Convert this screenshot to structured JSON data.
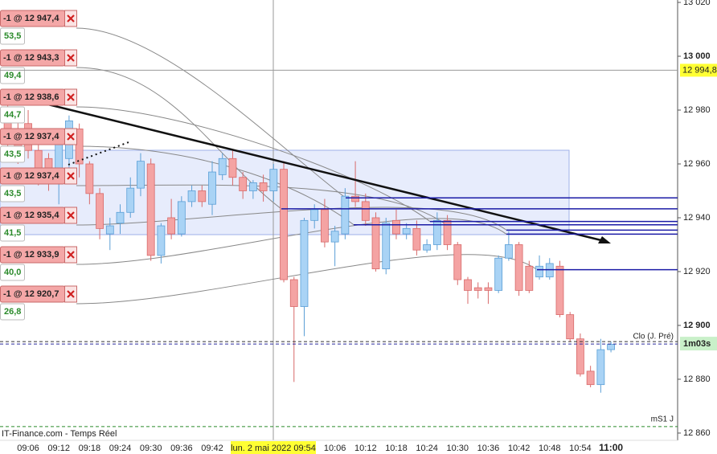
{
  "chart_data": {
    "type": "candlestick",
    "source": "IT-Finance.com - Temps Réel",
    "categories": [
      null,
      null,
      "09:06",
      null,
      null,
      "09:12",
      null,
      null,
      "09:18",
      null,
      null,
      "09:24",
      null,
      null,
      "09:30",
      null,
      null,
      "09:36",
      null,
      null,
      "09:42",
      null,
      null,
      null,
      null,
      null,
      null,
      null,
      null,
      null,
      null,
      null,
      "10:06",
      null,
      null,
      "10:12",
      null,
      null,
      "10:18",
      null,
      null,
      "10:24",
      null,
      null,
      "10:30",
      null,
      null,
      "10:36",
      null,
      null,
      "10:42",
      null,
      null,
      "10:48",
      null,
      null,
      "10:54",
      null,
      null,
      "11:00"
    ],
    "open": [
      12978,
      12972,
      12975,
      12965,
      12962,
      12955,
      12962,
      12973,
      12960,
      12949,
      12934,
      12938,
      12942,
      12951,
      12960,
      12926,
      12940,
      12934,
      12946,
      12950,
      12945,
      12956,
      12962,
      12955,
      12950,
      12953,
      12950,
      12958,
      12917,
      12907,
      12939,
      12943,
      12931,
      12934,
      12948,
      12946,
      12940,
      12921,
      12939,
      12934,
      12936,
      12928,
      12930,
      12939,
      12930,
      12917,
      12914,
      12914,
      12913,
      12925,
      12930,
      12922,
      12918,
      12918,
      12922,
      12904,
      12895,
      12883,
      12878,
      12891
    ],
    "high": [
      12982,
      12976,
      12980,
      12968,
      12964,
      12970,
      12978,
      12975,
      12961,
      12951,
      12940,
      12945,
      12955,
      12964,
      12962,
      12938,
      12947,
      12948,
      12952,
      12952,
      12961,
      12964,
      12965,
      12957,
      12954,
      12956,
      12960,
      12961,
      12918,
      12940,
      12945,
      12947,
      12937,
      12951,
      12961,
      12949,
      12942,
      12940,
      12943,
      12938,
      12939,
      12932,
      12942,
      12941,
      12931,
      12918,
      12916,
      12916,
      12926,
      12935,
      12931,
      12924,
      12926,
      12925,
      12924,
      12905,
      12897,
      12885,
      12895,
      12894
    ],
    "low": [
      12966,
      12960,
      12962,
      12952,
      12950,
      12945,
      12955,
      12955,
      12945,
      12932,
      12928,
      12934,
      12940,
      12948,
      12924,
      12923,
      12932,
      12933,
      12944,
      12944,
      12941,
      12954,
      12952,
      12947,
      12947,
      12946,
      12946,
      12916,
      12879,
      12896,
      12936,
      12929,
      12922,
      12932,
      12944,
      12937,
      12920,
      12919,
      12932,
      12932,
      12926,
      12927,
      12928,
      12928,
      12915,
      12908,
      12910,
      12908,
      12912,
      12924,
      12911,
      12912,
      12917,
      12917,
      12903,
      12894,
      12881,
      12877,
      12875,
      12890
    ],
    "close": [
      12970,
      12966,
      12965,
      12958,
      12958,
      12968,
      12976,
      12960,
      12949,
      12936,
      12937,
      12942,
      12951,
      12961,
      12926,
      12937,
      12934,
      12946,
      12950,
      12946,
      12957,
      12962,
      12955,
      12950,
      12953,
      12950,
      12958,
      12917,
      12907,
      12939,
      12943,
      12931,
      12935,
      12948,
      12946,
      12939,
      12921,
      12938,
      12934,
      12936,
      12928,
      12930,
      12939,
      12930,
      12917,
      12913,
      12913,
      12913,
      12925,
      12930,
      12913,
      12913,
      12922,
      12923,
      12904,
      12895,
      12882,
      12878,
      12891,
      12893
    ],
    "up_color": "#a9d3f5",
    "down_color": "#f4a3a3",
    "ylim": [
      12857.3,
      13020.9
    ],
    "yticks": [
      {
        "value": 13020,
        "label": "13 020"
      },
      {
        "value": 13000,
        "label": "13 000"
      },
      {
        "value": 12980,
        "label": "12 980"
      },
      {
        "value": 12960,
        "label": "12 960"
      },
      {
        "value": 12940,
        "label": "12 940"
      },
      {
        "value": 12920,
        "label": "12 920"
      },
      {
        "value": 12900,
        "label": "12 900"
      },
      {
        "value": 12880,
        "label": "12 880"
      },
      {
        "value": 12860,
        "label": "12 860"
      }
    ],
    "orders": [
      {
        "label": "-1 @ 12 947,4",
        "price": 12947.4,
        "result": 53.5,
        "result_label": "53,5"
      },
      {
        "label": "-1 @ 12 943,3",
        "price": 12943.3,
        "result": 49.4,
        "result_label": "49,4"
      },
      {
        "label": "-1 @ 12 938,6",
        "price": 12938.6,
        "result": 44.7,
        "result_label": "44,7"
      },
      {
        "label": "-1 @ 12 937,4",
        "price": 12937.4,
        "result": 43.5,
        "result_label": "43,5"
      },
      {
        "label": "-1 @ 12 937,4",
        "price": 12937.4,
        "result": 43.5,
        "result_label": "43,5"
      },
      {
        "label": "-1 @ 12 935,4",
        "price": 12935.4,
        "result": 41.5,
        "result_label": "41,5"
      },
      {
        "label": "-1 @ 12 933,9",
        "price": 12933.9,
        "result": 40.0,
        "result_label": "40,0"
      },
      {
        "label": "-1 @ 12 920,7",
        "price": 12920.7,
        "result": 26.8,
        "result_label": "26,8"
      }
    ],
    "reference_lines": [
      {
        "label": "Clo (J. Pré)",
        "value": 12893.1,
        "color": "#2a2a9a"
      },
      {
        "label": "mS1 J",
        "value": 12862.4,
        "color": "#2a8a2a"
      }
    ],
    "countdown": "1m03s",
    "crosshair": {
      "time_label": "lun. 2 mai 2022 09:54",
      "price": {
        "value": 12994.8,
        "label": "12 994,8"
      }
    }
  }
}
